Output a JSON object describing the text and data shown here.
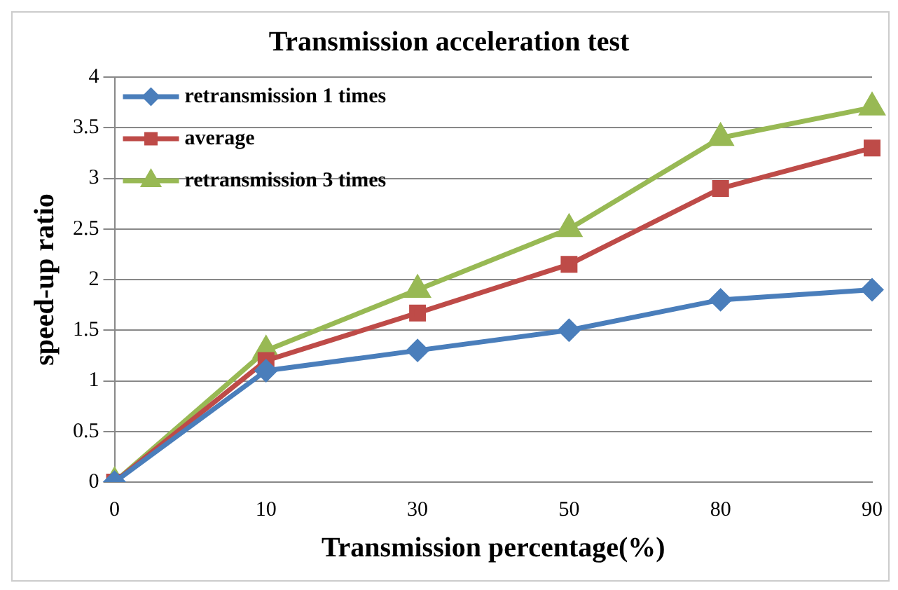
{
  "chart_data": {
    "type": "line",
    "title": "Transmission acceleration test",
    "xlabel": "Transmission percentage(%)",
    "ylabel": "speed-up ratio",
    "categories": [
      "0",
      "10",
      "30",
      "50",
      "80",
      "90"
    ],
    "series": [
      {
        "name": "retransmission 1 times",
        "color": "#4a7ebb",
        "marker": "diamond",
        "values": [
          0,
          1.1,
          1.3,
          1.5,
          1.8,
          1.9
        ]
      },
      {
        "name": "average",
        "color": "#be4b48",
        "marker": "square",
        "values": [
          0,
          1.2,
          1.67,
          2.15,
          2.9,
          3.3
        ]
      },
      {
        "name": "retransmission 3 times",
        "color": "#98b954",
        "marker": "triangle",
        "values": [
          0,
          1.3,
          1.9,
          2.5,
          3.4,
          3.7
        ]
      }
    ],
    "ylim": [
      0,
      4
    ],
    "yticks": [
      0,
      0.5,
      1,
      1.5,
      2,
      2.5,
      3,
      3.5,
      4
    ],
    "grid": "y",
    "legend": "top left",
    "line_style": "solid"
  }
}
